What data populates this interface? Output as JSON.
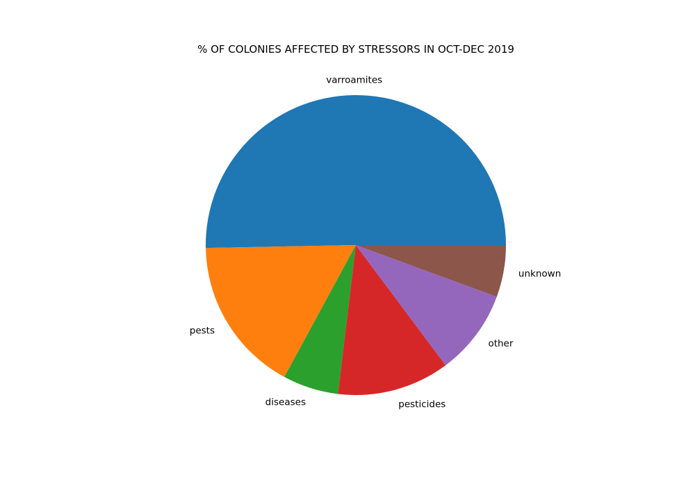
{
  "chart_data": {
    "type": "pie",
    "title": "% OF COLONIES AFFECTED BY STRESSORS IN OCT-DEC 2019",
    "categories": [
      "varroamites",
      "pests",
      "diseases",
      "pesticides",
      "other",
      "unknown"
    ],
    "values": [
      50.3,
      16.8,
      6.0,
      12.1,
      9.2,
      5.6
    ],
    "colors": [
      "#1f77b4",
      "#ff7f0e",
      "#2ca02c",
      "#d62728",
      "#9467bd",
      "#8c564b"
    ],
    "start_angle_deg": 0,
    "direction": "counterclockwise",
    "legend": "none"
  }
}
